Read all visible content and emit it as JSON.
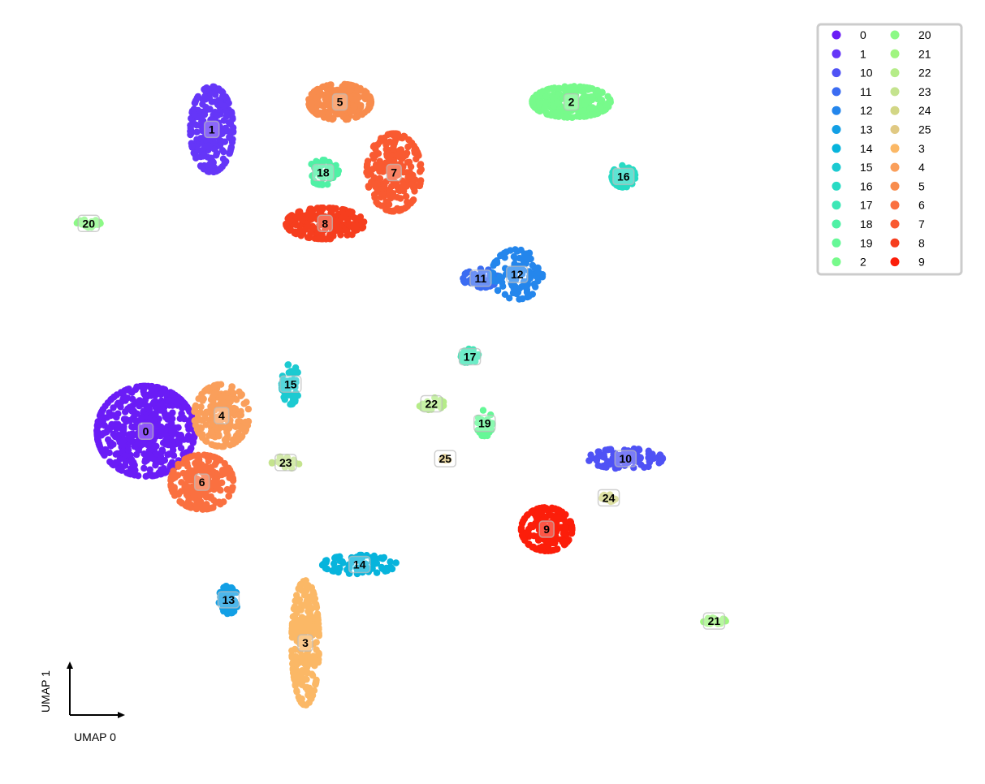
{
  "chart_data": {
    "type": "scatter",
    "title": "",
    "xlabel": "UMAP 0",
    "ylabel": "UMAP 1",
    "grid": false,
    "legend_placement": "top-right",
    "legend_columns": 2,
    "x_range": [
      0,
      100
    ],
    "y_range": [
      0,
      100
    ],
    "clusters": [
      {
        "name": "0",
        "color": "#6a1cf6",
        "center": [
          14.8,
          45.0
        ],
        "spread": [
          5.0,
          5.8
        ],
        "count": 520
      },
      {
        "name": "1",
        "color": "#6536f8",
        "center": [
          21.5,
          83.5
        ],
        "spread": [
          2.2,
          5.5
        ],
        "count": 220
      },
      {
        "name": "10",
        "color": "#4f52f5",
        "center": [
          63.5,
          41.5
        ],
        "spread": [
          3.8,
          1.3
        ],
        "count": 90
      },
      {
        "name": "11",
        "color": "#3b6cf2",
        "center": [
          48.8,
          64.5
        ],
        "spread": [
          1.8,
          1.2
        ],
        "count": 70
      },
      {
        "name": "12",
        "color": "#2486ec",
        "center": [
          52.5,
          65.0
        ],
        "spread": [
          2.6,
          3.2
        ],
        "count": 110
      },
      {
        "name": "13",
        "color": "#129fe5",
        "center": [
          23.2,
          23.5
        ],
        "spread": [
          1.0,
          1.8
        ],
        "count": 60
      },
      {
        "name": "14",
        "color": "#07b4dc",
        "center": [
          36.5,
          28.0
        ],
        "spread": [
          3.8,
          1.2
        ],
        "count": 80
      },
      {
        "name": "15",
        "color": "#1ccad1",
        "center": [
          29.5,
          51.0
        ],
        "spread": [
          0.9,
          2.6
        ],
        "count": 55
      },
      {
        "name": "16",
        "color": "#28dbc4",
        "center": [
          63.3,
          77.5
        ],
        "spread": [
          1.2,
          1.4
        ],
        "count": 60
      },
      {
        "name": "17",
        "color": "#3de7b6",
        "center": [
          47.7,
          54.5
        ],
        "spread": [
          0.9,
          1.0
        ],
        "count": 30
      },
      {
        "name": "18",
        "color": "#4ff1a5",
        "center": [
          32.8,
          78.0
        ],
        "spread": [
          1.6,
          1.6
        ],
        "count": 45
      },
      {
        "name": "19",
        "color": "#65f897",
        "center": [
          49.2,
          46.0
        ],
        "spread": [
          0.8,
          1.7
        ],
        "count": 30
      },
      {
        "name": "2",
        "color": "#77fa8b",
        "center": [
          58.0,
          87.0
        ],
        "spread": [
          4.0,
          2.0
        ],
        "count": 260
      },
      {
        "name": "20",
        "color": "#8cf986",
        "center": [
          9.0,
          71.5
        ],
        "spread": [
          1.2,
          0.5
        ],
        "count": 30
      },
      {
        "name": "21",
        "color": "#a0f580",
        "center": [
          72.5,
          20.8
        ],
        "spread": [
          1.2,
          0.4
        ],
        "count": 25
      },
      {
        "name": "22",
        "color": "#b5ec88",
        "center": [
          43.8,
          48.5
        ],
        "spread": [
          1.3,
          0.8
        ],
        "count": 20
      },
      {
        "name": "23",
        "color": "#c4e38e",
        "center": [
          29.0,
          41.0
        ],
        "spread": [
          1.4,
          0.8
        ],
        "count": 20
      },
      {
        "name": "24",
        "color": "#d2d685",
        "center": [
          61.8,
          36.5
        ],
        "spread": [
          0.7,
          0.5
        ],
        "count": 22
      },
      {
        "name": "25",
        "color": "#e0c983",
        "center": [
          45.2,
          41.5
        ],
        "spread": [
          0.4,
          0.3
        ],
        "count": 8
      },
      {
        "name": "3",
        "color": "#fbb866",
        "center": [
          31.0,
          18.0
        ],
        "spread": [
          1.4,
          8.0
        ],
        "count": 260
      },
      {
        "name": "4",
        "color": "#fa9f5b",
        "center": [
          22.5,
          47.0
        ],
        "spread": [
          2.8,
          4.0
        ],
        "count": 200
      },
      {
        "name": "5",
        "color": "#f88c4d",
        "center": [
          34.5,
          87.0
        ],
        "spread": [
          3.2,
          2.3
        ],
        "count": 220
      },
      {
        "name": "6",
        "color": "#fa7040",
        "center": [
          20.5,
          38.5
        ],
        "spread": [
          3.2,
          3.5
        ],
        "count": 230
      },
      {
        "name": "7",
        "color": "#f95a31",
        "center": [
          40.0,
          78.0
        ],
        "spread": [
          2.8,
          5.0
        ],
        "count": 240
      },
      {
        "name": "8",
        "color": "#f63e1e",
        "center": [
          33.0,
          71.5
        ],
        "spread": [
          4.0,
          2.0
        ],
        "count": 200
      },
      {
        "name": "9",
        "color": "#fc1e0a",
        "center": [
          55.5,
          32.5
        ],
        "spread": [
          2.6,
          2.8
        ],
        "count": 180
      }
    ]
  }
}
